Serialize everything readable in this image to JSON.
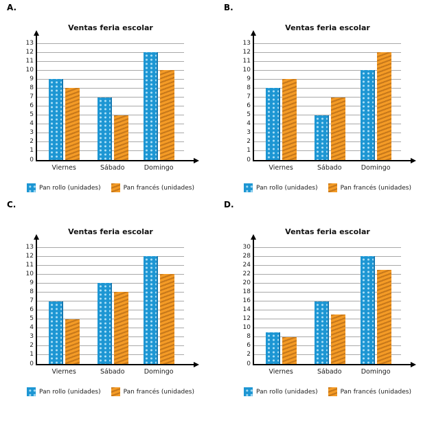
{
  "colors": {
    "bar_blue": "#1D96D3",
    "bar_blue_dot": "#A8DDF6",
    "bar_blue_edge": "#1579B2",
    "bar_orange": "#F49B26",
    "bar_orange_stripe": "#C8791B",
    "gridline": "#A8A8A8",
    "axis": "#000000",
    "text": "#1A1A1A"
  },
  "chart_data": [
    {
      "option_label": "A.",
      "type": "bar",
      "title": "Ventas feria escolar",
      "categories": [
        "Viernes",
        "Sábado",
        "Domingo"
      ],
      "series": [
        {
          "name": "Pan rollo (unidades)",
          "pattern": "dots",
          "color": "#1D96D3",
          "values": [
            9,
            7,
            12
          ]
        },
        {
          "name": "Pan francés (unidades)",
          "pattern": "stripes",
          "color": "#F49B26",
          "values": [
            8,
            5,
            10
          ]
        }
      ],
      "y_tick_labels": [
        "0",
        "1",
        "2",
        "3",
        "4",
        "5",
        "6",
        "7",
        "8",
        "9",
        "10",
        "11",
        "12",
        "13"
      ],
      "ylim": [
        0,
        13
      ],
      "grid": true,
      "legend_position": "bottom"
    },
    {
      "option_label": "B.",
      "type": "bar",
      "title": "Ventas feria escolar",
      "categories": [
        "Viernes",
        "Sábado",
        "Domingo"
      ],
      "series": [
        {
          "name": "Pan rollo (unidades)",
          "pattern": "dots",
          "color": "#1D96D3",
          "values": [
            8,
            5,
            10
          ]
        },
        {
          "name": "Pan francés (unidades)",
          "pattern": "stripes",
          "color": "#F49B26",
          "values": [
            9,
            7,
            12
          ]
        }
      ],
      "y_tick_labels": [
        "0",
        "1",
        "2",
        "3",
        "4",
        "5",
        "6",
        "7",
        "8",
        "9",
        "10",
        "11",
        "12",
        "13"
      ],
      "ylim": [
        0,
        13
      ],
      "grid": true,
      "legend_position": "bottom"
    },
    {
      "option_label": "C.",
      "type": "bar",
      "title": "Ventas feria escolar",
      "categories": [
        "Viernes",
        "Sábado",
        "Domingo"
      ],
      "series": [
        {
          "name": "Pan rollo (unidades)",
          "pattern": "dots",
          "color": "#1D96D3",
          "values": [
            7,
            9,
            12
          ]
        },
        {
          "name": "Pan francés (unidades)",
          "pattern": "stripes",
          "color": "#F49B26",
          "values": [
            5,
            8,
            10
          ]
        }
      ],
      "y_tick_labels": [
        "0",
        "1",
        "2",
        "3",
        "4",
        "5",
        "6",
        "7",
        "8",
        "9",
        "10",
        "11",
        "12",
        "13"
      ],
      "ylim": [
        0,
        13
      ],
      "grid": true,
      "legend_position": "bottom"
    },
    {
      "option_label": "D.",
      "type": "bar",
      "title": "Ventas feria escolar",
      "categories": [
        "Viernes",
        "Sábado",
        "Domingo"
      ],
      "series": [
        {
          "name": "Pan rollo (unidades)",
          "pattern": "dots",
          "color": "#1D96D3",
          "values": [
            9,
            16,
            28
          ]
        },
        {
          "name": "Pan francés (unidades)",
          "pattern": "stripes",
          "color": "#F49B26",
          "values": [
            8,
            13,
            23
          ]
        }
      ],
      "y_tick_labels": [
        "0",
        "2",
        "6",
        "8",
        "10",
        "12",
        "14",
        "16",
        "18",
        "20",
        "22",
        "24",
        "28",
        "30"
      ],
      "ylim": [
        0,
        30
      ],
      "grid": true,
      "legend_position": "bottom"
    }
  ]
}
